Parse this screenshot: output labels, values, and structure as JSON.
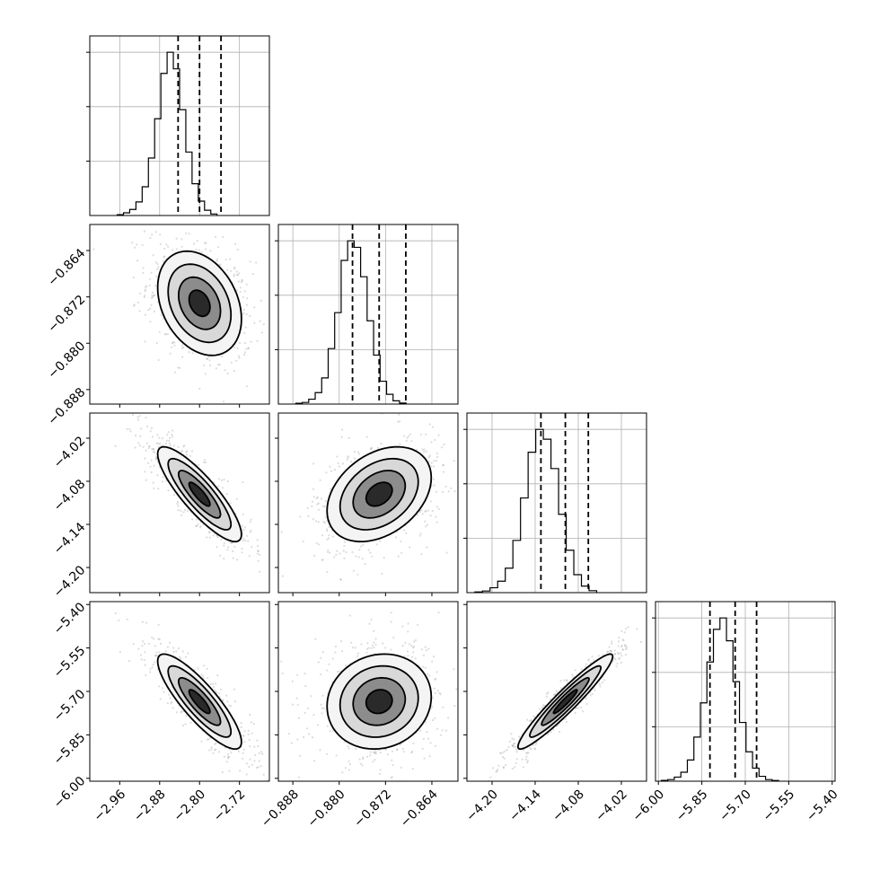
{
  "chart_data": {
    "type": "corner",
    "params": [
      {
        "range": [
          -3.02,
          -2.66
        ],
        "ticks": [
          -2.96,
          -2.88,
          -2.8,
          -2.72
        ],
        "tick_labels": [
          "−2.96",
          "−2.88",
          "−2.80",
          "−2.72"
        ],
        "quantiles": [
          -2.843,
          -2.8,
          -2.757
        ],
        "median": -2.8,
        "sigma": 0.042
      },
      {
        "range": [
          -0.8905,
          -0.8595
        ],
        "ticks": [
          -0.888,
          -0.88,
          -0.872,
          -0.864
        ],
        "tick_labels": [
          "−0.888",
          "−0.880",
          "−0.872",
          "−0.864"
        ],
        "quantiles": [
          -0.8777,
          -0.8731,
          -0.8685
        ],
        "median": -0.8731,
        "sigma": 0.0045
      },
      {
        "range": [
          -4.235,
          -3.985
        ],
        "ticks": [
          -4.2,
          -4.14,
          -4.08,
          -4.02
        ],
        "tick_labels": [
          "−4.20",
          "−4.14",
          "−4.08",
          "−4.02"
        ],
        "quantiles": [
          -4.132,
          -4.098,
          -4.066
        ],
        "median": -4.098,
        "sigma": 0.033
      },
      {
        "range": [
          -6.01,
          -5.39
        ],
        "ticks": [
          -6.0,
          -5.85,
          -5.7,
          -5.55,
          -5.4
        ],
        "tick_labels": [
          "−6.00",
          "−5.85",
          "−5.70",
          "−5.55",
          "−5.40"
        ],
        "quantiles": [
          -5.822,
          -5.735,
          -5.661
        ],
        "median": -5.735,
        "sigma": 0.082
      }
    ],
    "diagonal": [
      {
        "param": 0,
        "bin_start": -2.965,
        "bin_width": 0.0125,
        "counts": [
          5,
          18,
          40,
          90,
          190,
          380,
          640,
          940,
          1080,
          970,
          700,
          420,
          210,
          95,
          35,
          10
        ]
      },
      {
        "param": 1,
        "bin_start": -0.8875,
        "bin_width": 0.00112,
        "counts": [
          5,
          10,
          30,
          70,
          160,
          340,
          560,
          880,
          1000,
          960,
          780,
          510,
          300,
          140,
          60,
          20,
          6
        ]
      },
      {
        "param": 2,
        "bin_start": -4.224,
        "bin_width": 0.0106,
        "counts": [
          4,
          10,
          30,
          70,
          150,
          320,
          580,
          860,
          1000,
          940,
          760,
          480,
          260,
          110,
          40,
          12
        ]
      },
      {
        "param": 3,
        "bin_start": -5.99,
        "bin_width": 0.0225,
        "counts": [
          5,
          10,
          25,
          55,
          130,
          270,
          480,
          730,
          930,
          1000,
          860,
          610,
          360,
          180,
          80,
          30,
          10,
          4
        ]
      }
    ],
    "pairs": [
      {
        "x_param": 0,
        "y_param": 1,
        "correlation": -0.3
      },
      {
        "x_param": 0,
        "y_param": 2,
        "correlation": -0.85
      },
      {
        "x_param": 1,
        "y_param": 2,
        "correlation": 0.35
      },
      {
        "x_param": 0,
        "y_param": 3,
        "correlation": -0.85
      },
      {
        "x_param": 1,
        "y_param": 3,
        "correlation": 0.1
      },
      {
        "x_param": 2,
        "y_param": 3,
        "correlation": 0.95
      }
    ],
    "contour_levels_sigma": [
      0.5,
      1.0,
      1.5,
      2.0
    ],
    "grid": true,
    "scatter_points": 700
  },
  "style": {
    "contour_color": "#000000",
    "point_color": "#9a9a9a",
    "density_color": "#000000"
  }
}
